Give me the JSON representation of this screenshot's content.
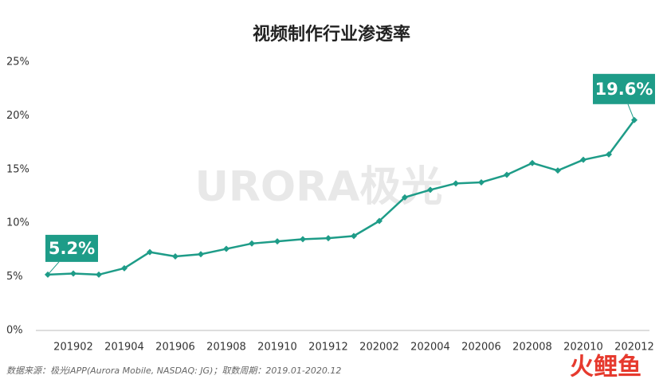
{
  "chart_data": {
    "type": "line",
    "title": "视频制作行业渗透率",
    "categories": [
      null,
      "201902",
      null,
      "201904",
      null,
      "201906",
      null,
      "201908",
      null,
      "201910",
      null,
      "201912",
      null,
      "202002",
      null,
      "202004",
      null,
      "202006",
      null,
      "202008",
      null,
      "202010",
      null,
      "202012"
    ],
    "series": [
      {
        "name": "视频制作行业渗透率",
        "color": "#1e9c88",
        "values": [
          5.2,
          5.3,
          5.2,
          5.8,
          7.3,
          6.9,
          7.1,
          7.6,
          8.1,
          8.3,
          8.5,
          8.6,
          8.8,
          10.2,
          12.4,
          13.1,
          13.7,
          13.8,
          14.5,
          15.6,
          14.9,
          15.9,
          16.4,
          19.6
        ],
        "value_labels": [
          "5.2%",
          null,
          null,
          null,
          null,
          null,
          null,
          null,
          null,
          null,
          null,
          null,
          null,
          null,
          null,
          null,
          null,
          null,
          null,
          null,
          null,
          null,
          null,
          "19.6%"
        ]
      }
    ],
    "ylim": [
      0,
      25
    ],
    "yticks": [
      {
        "value": 0,
        "label": "0%"
      },
      {
        "value": 5,
        "label": "5%"
      },
      {
        "value": 10,
        "label": "10%"
      },
      {
        "value": 15,
        "label": "15%"
      },
      {
        "value": 20,
        "label": "20%"
      },
      {
        "value": 25,
        "label": "25%"
      }
    ],
    "grid": false,
    "watermark": "URORA极光",
    "source": "数据来源：极光iAPP(Aurora Mobile, NASDAQ: JG)；取数周期：2019.01-2020.12",
    "logo": "火鲤鱼"
  }
}
